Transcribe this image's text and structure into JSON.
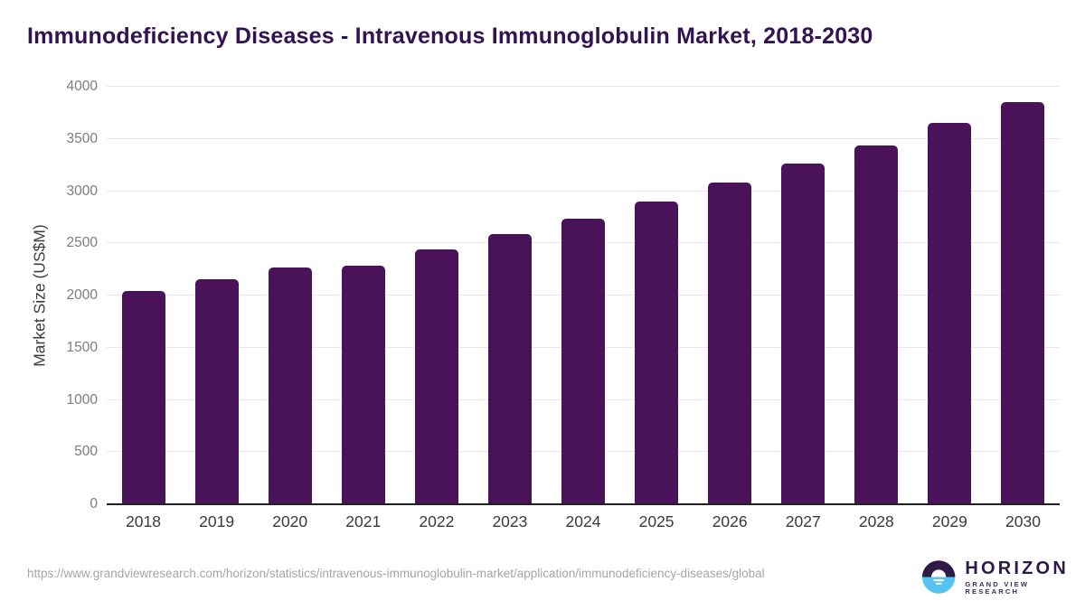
{
  "title": "Immunodeficiency Diseases - Intravenous Immunoglobulin Market, 2018-2030",
  "chart_data": {
    "type": "bar",
    "categories": [
      "2018",
      "2019",
      "2020",
      "2021",
      "2022",
      "2023",
      "2024",
      "2025",
      "2026",
      "2027",
      "2028",
      "2029",
      "2030"
    ],
    "values": [
      2040,
      2160,
      2270,
      2290,
      2440,
      2590,
      2740,
      2900,
      3080,
      3260,
      3440,
      3650,
      3850
    ],
    "title": "Immunodeficiency Diseases - Intravenous Immunoglobulin Market, 2018-2030",
    "xlabel": "",
    "ylabel": "Market Size (US$M)",
    "ylim": [
      0,
      4000
    ],
    "yticks": [
      0,
      500,
      1000,
      1500,
      2000,
      2500,
      3000,
      3500,
      4000
    ],
    "grid": true,
    "legend": "none",
    "bar_color": "#4a1259"
  },
  "footer": {
    "source_url": "https://www.grandviewresearch.com/horizon/statistics/intravenous-immunoglobulin-market/application/immunodeficiency-diseases/global"
  },
  "logo": {
    "name": "HORIZON",
    "subtitle": "GRAND VIEW RESEARCH",
    "mark_top_color": "#2e1a47",
    "mark_bottom_color": "#55c3ef"
  },
  "colors": {
    "title": "#331253",
    "bar": "#4a1259",
    "gridline": "#e9e9e9",
    "axis_line": "#212121",
    "y_tick_text": "#7d7d7d",
    "axis_title_text": "#3d3d3d",
    "x_label_text": "#3a3a3a",
    "source_text": "#a5a5a5"
  }
}
